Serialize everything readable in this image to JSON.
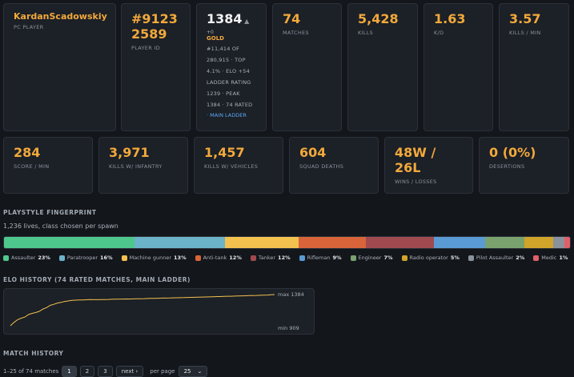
{
  "player": {
    "name": "KardanScadowskiy",
    "platform": "PC PLAYER"
  },
  "player_id": {
    "line1": "#9123",
    "line2": "2589",
    "label": "PLAYER ID"
  },
  "elo": {
    "value": "1384",
    "trend_icon": "triangle-up",
    "delta": "+0",
    "tier": "GOLD",
    "lines": [
      "#11,414 OF",
      "280,915 · TOP",
      "4.1% · ELO +54",
      "LADDER RATING",
      "1239 · PEAK",
      "1384 · 74 RATED"
    ],
    "link": "· MAIN LADDER"
  },
  "top_stats": [
    {
      "value": "74",
      "label": "MATCHES"
    },
    {
      "value": "5,428",
      "label": "KILLS"
    },
    {
      "value": "1.63",
      "label": "K/D"
    },
    {
      "value": "3.57",
      "label": "KILLS / MIN"
    }
  ],
  "row2_stats": [
    {
      "value": "284",
      "label": "SCORE / MIN"
    },
    {
      "value": "3,971",
      "label": "KILLS W/ INFANTRY"
    },
    {
      "value": "1,457",
      "label": "KILLS W/ VEHICLES"
    },
    {
      "value": "604",
      "label": "SQUAD DEATHS"
    },
    {
      "value_line1": "48W /",
      "value_line2": "26L",
      "label": "WINS / LOSSES"
    },
    {
      "value": "0 (0%)",
      "label": "DESERTIONS"
    }
  ],
  "playstyle": {
    "title": "PLAYSTYLE FINGERPRINT",
    "subtitle": "1,236 lives, class chosen per spawn",
    "classes": [
      {
        "name": "Assaulter",
        "pct": "23%",
        "share": 23,
        "color": "#4ec78c"
      },
      {
        "name": "Paratrooper",
        "pct": "16%",
        "share": 16,
        "color": "#6bb3c8"
      },
      {
        "name": "Machine gunner",
        "pct": "13%",
        "share": 13,
        "color": "#f2c14e"
      },
      {
        "name": "Anti-tank",
        "pct": "12%",
        "share": 12,
        "color": "#d9643a"
      },
      {
        "name": "Tanker",
        "pct": "12%",
        "share": 12,
        "color": "#a04a4f"
      },
      {
        "name": "Rifleman",
        "pct": "9%",
        "share": 9,
        "color": "#5b9bd5"
      },
      {
        "name": "Engineer",
        "pct": "7%",
        "share": 7,
        "color": "#7aa26e"
      },
      {
        "name": "Radio operator",
        "pct": "5%",
        "share": 5,
        "color": "#d1a42a"
      },
      {
        "name": "Pilot Assaulter",
        "pct": "2%",
        "share": 2,
        "color": "#8a929c"
      },
      {
        "name": "Medic",
        "pct": "1%",
        "share": 1,
        "color": "#e0606a"
      }
    ]
  },
  "elo_history": {
    "title": "ELO HISTORY (74 RATED MATCHES, MAIN LADDER)",
    "max_label": "max 1384",
    "min_label": "min 909",
    "min": 909,
    "max": 1384,
    "line_color": "#f2c14e"
  },
  "match_history": {
    "title": "MATCH HISTORY",
    "range_text": "1–25 of 74 matches",
    "pages": [
      "1",
      "2",
      "3"
    ],
    "active_page": "1",
    "next_label": "next ›",
    "per_page_label": "per page",
    "per_page_value": "25"
  },
  "chart_data": {
    "type": "line",
    "title": "ELO HISTORY (74 RATED MATCHES, MAIN LADDER)",
    "xlabel": "",
    "ylabel": "",
    "ylim": [
      909,
      1384
    ],
    "series": [
      {
        "values": [
          909,
          960,
          1001,
          1025,
          1042,
          1080,
          1098,
          1110,
          1130,
          1164,
          1185,
          1220,
          1235,
          1255,
          1265,
          1279,
          1287,
          1295,
          1299,
          1301,
          1303,
          1305,
          1307,
          1306,
          1306,
          1308,
          1309,
          1310,
          1312,
          1313,
          1314,
          1316,
          1317,
          1316,
          1318,
          1320,
          1321,
          1322,
          1324,
          1325,
          1327,
          1328,
          1330,
          1331,
          1332,
          1334,
          1335,
          1336,
          1338,
          1340,
          1341,
          1343,
          1345,
          1346,
          1348,
          1349,
          1351,
          1353,
          1354,
          1356,
          1358,
          1359,
          1361,
          1363,
          1364,
          1366,
          1368,
          1369,
          1371,
          1373,
          1375,
          1377,
          1380,
          1384
        ]
      }
    ]
  }
}
